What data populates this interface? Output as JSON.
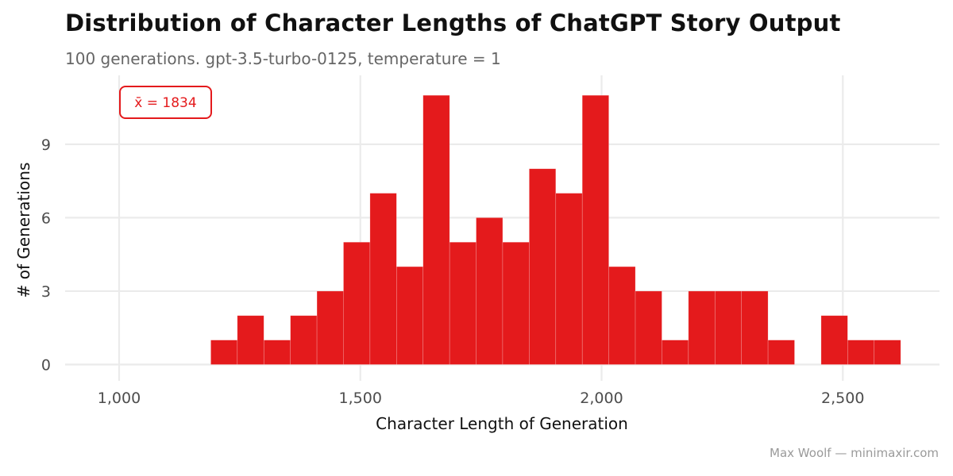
{
  "title": "Distribution of Character Lengths of ChatGPT Story Output",
  "subtitle": "100 generations. gpt-3.5-turbo-0125, temperature = 1",
  "caption": "Max Woolf — minimaxir.com",
  "annotation": "x̄ = 1834",
  "colors": {
    "bar": "#e41a1c",
    "grid": "#ebebeb",
    "annotation": "#e41a1c"
  },
  "chart_data": {
    "type": "bar",
    "subtype": "histogram",
    "xlabel": "Character Length of Generation",
    "ylabel": "# of Generations",
    "xlim": [
      900,
      2700
    ],
    "ylim": [
      0,
      11
    ],
    "x_ticks": [
      1000,
      1500,
      2000,
      2500
    ],
    "x_tick_labels": [
      "1,000",
      "1,500",
      "2,000",
      "2,500"
    ],
    "y_ticks": [
      0,
      3,
      6,
      9
    ],
    "y_tick_labels": [
      "0",
      "3",
      "6",
      "9"
    ],
    "grid": true,
    "mean": 1834,
    "bins": [
      {
        "start": 1190,
        "end": 1245,
        "count": 1
      },
      {
        "start": 1245,
        "end": 1300,
        "count": 2
      },
      {
        "start": 1300,
        "end": 1355,
        "count": 1
      },
      {
        "start": 1355,
        "end": 1410,
        "count": 2
      },
      {
        "start": 1410,
        "end": 1465,
        "count": 3
      },
      {
        "start": 1465,
        "end": 1520,
        "count": 5
      },
      {
        "start": 1520,
        "end": 1575,
        "count": 7
      },
      {
        "start": 1575,
        "end": 1630,
        "count": 4
      },
      {
        "start": 1630,
        "end": 1685,
        "count": 11
      },
      {
        "start": 1685,
        "end": 1740,
        "count": 5
      },
      {
        "start": 1740,
        "end": 1795,
        "count": 6
      },
      {
        "start": 1795,
        "end": 1850,
        "count": 5
      },
      {
        "start": 1850,
        "end": 1905,
        "count": 8
      },
      {
        "start": 1905,
        "end": 1960,
        "count": 7
      },
      {
        "start": 1960,
        "end": 2015,
        "count": 11
      },
      {
        "start": 2015,
        "end": 2070,
        "count": 4
      },
      {
        "start": 2070,
        "end": 2125,
        "count": 3
      },
      {
        "start": 2125,
        "end": 2180,
        "count": 1
      },
      {
        "start": 2180,
        "end": 2235,
        "count": 3
      },
      {
        "start": 2235,
        "end": 2290,
        "count": 3
      },
      {
        "start": 2290,
        "end": 2345,
        "count": 3
      },
      {
        "start": 2345,
        "end": 2400,
        "count": 1
      },
      {
        "start": 2400,
        "end": 2455,
        "count": 0
      },
      {
        "start": 2455,
        "end": 2510,
        "count": 2
      },
      {
        "start": 2510,
        "end": 2565,
        "count": 1
      },
      {
        "start": 2565,
        "end": 2620,
        "count": 1
      }
    ]
  }
}
